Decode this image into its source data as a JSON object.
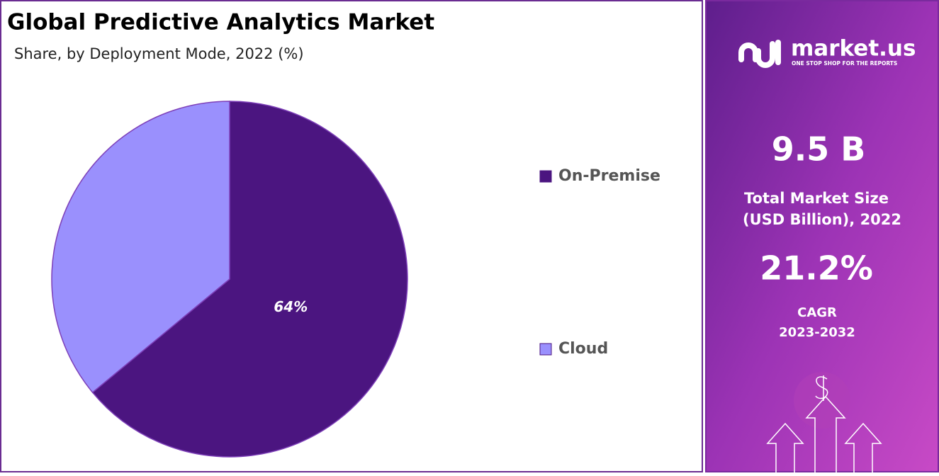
{
  "chart_data": {
    "type": "pie",
    "title": "Global Predictive Analytics Market",
    "subtitle": "Share, by Deployment Mode, 2022 (%)",
    "categories": [
      "On-Premise",
      "Cloud"
    ],
    "values": [
      64,
      36
    ],
    "value_labels": [
      "64%",
      null
    ],
    "colors": [
      "#4b1580",
      "#9a90fd"
    ],
    "legend": "right"
  },
  "panel": {
    "brand": "market.us",
    "tagline": "ONE STOP SHOP FOR THE REPORTS",
    "market_size": "9.5 B",
    "market_size_label_1": "Total Market Size",
    "market_size_label_2": "(USD Billion), 2022",
    "cagr": "21.2%",
    "cagr_label_1": "CAGR",
    "cagr_label_2": "2023-2032"
  }
}
